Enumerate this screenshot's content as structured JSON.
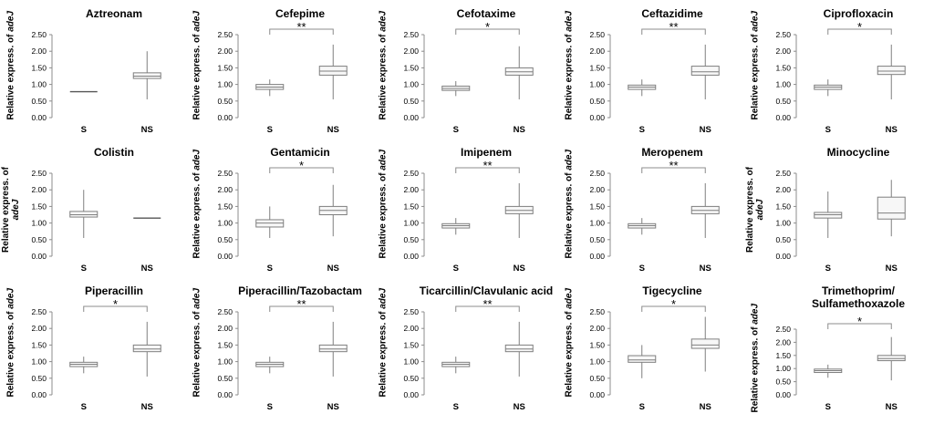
{
  "ylabel_prefix": "Relative express. of ",
  "ylabel_gene": "adeJ",
  "colors": {
    "box_fill": "#f7f7f7",
    "stroke": "#7f7f7f",
    "axis": "#8c8c8c",
    "text": "#000000"
  },
  "chart_data": [
    {
      "type": "box",
      "title": "Aztreonam",
      "categories": [
        "S",
        "NS"
      ],
      "ylim": [
        0,
        2.5
      ],
      "yticks": [
        "0.00",
        "0.50",
        "1.00",
        "1.50",
        "2.00",
        "2.50"
      ],
      "significance": "",
      "boxes": [
        {
          "min": 0.78,
          "q1": 0.78,
          "median": 0.78,
          "q3": 0.78,
          "max": 0.78
        },
        {
          "min": 0.55,
          "q1": 1.18,
          "median": 1.25,
          "q3": 1.35,
          "max": 2.0
        }
      ]
    },
    {
      "type": "box",
      "title": "Cefepime",
      "categories": [
        "S",
        "NS"
      ],
      "ylim": [
        0,
        2.5
      ],
      "yticks": [
        "0.00",
        "0.50",
        "1.00",
        "1.50",
        "2.00",
        "2.50"
      ],
      "significance": "**",
      "boxes": [
        {
          "min": 0.65,
          "q1": 0.85,
          "median": 0.92,
          "q3": 1.0,
          "max": 1.15
        },
        {
          "min": 0.55,
          "q1": 1.28,
          "median": 1.4,
          "q3": 1.55,
          "max": 2.2
        }
      ]
    },
    {
      "type": "box",
      "title": "Cefotaxime",
      "categories": [
        "S",
        "NS"
      ],
      "ylim": [
        0,
        2.5
      ],
      "yticks": [
        "0.00",
        "0.50",
        "1.00",
        "1.50",
        "2.00",
        "2.50"
      ],
      "significance": "*",
      "boxes": [
        {
          "min": 0.65,
          "q1": 0.82,
          "median": 0.88,
          "q3": 0.95,
          "max": 1.1
        },
        {
          "min": 0.55,
          "q1": 1.28,
          "median": 1.38,
          "q3": 1.5,
          "max": 2.15
        }
      ]
    },
    {
      "type": "box",
      "title": "Ceftazidime",
      "categories": [
        "S",
        "NS"
      ],
      "ylim": [
        0,
        2.5
      ],
      "yticks": [
        "0.00",
        "0.50",
        "1.00",
        "1.50",
        "2.00",
        "2.50"
      ],
      "significance": "**",
      "boxes": [
        {
          "min": 0.65,
          "q1": 0.85,
          "median": 0.92,
          "q3": 0.98,
          "max": 1.15
        },
        {
          "min": 0.55,
          "q1": 1.28,
          "median": 1.38,
          "q3": 1.55,
          "max": 2.2
        }
      ]
    },
    {
      "type": "box",
      "title": "Ciprofloxacin",
      "categories": [
        "S",
        "NS"
      ],
      "ylim": [
        0,
        2.5
      ],
      "yticks": [
        "0.00",
        "0.50",
        "1.00",
        "1.50",
        "2.00",
        "2.50"
      ],
      "significance": "*",
      "boxes": [
        {
          "min": 0.65,
          "q1": 0.85,
          "median": 0.92,
          "q3": 0.98,
          "max": 1.15
        },
        {
          "min": 0.55,
          "q1": 1.3,
          "median": 1.4,
          "q3": 1.55,
          "max": 2.2
        }
      ]
    },
    {
      "type": "box",
      "title": "Colistin",
      "categories": [
        "S",
        "NS"
      ],
      "ylim": [
        0,
        2.5
      ],
      "yticks": [
        "0.00",
        "0.50",
        "1.00",
        "1.50",
        "2.00",
        "2.50"
      ],
      "significance": "",
      "boxes": [
        {
          "min": 0.55,
          "q1": 1.18,
          "median": 1.25,
          "q3": 1.35,
          "max": 2.0
        },
        {
          "min": 1.15,
          "q1": 1.15,
          "median": 1.15,
          "q3": 1.15,
          "max": 1.15
        }
      ]
    },
    {
      "type": "box",
      "title": "Gentamicin",
      "categories": [
        "S",
        "NS"
      ],
      "ylim": [
        0,
        2.5
      ],
      "yticks": [
        "0.00",
        "0.50",
        "1.00",
        "1.50",
        "2.00",
        "2.50"
      ],
      "significance": "*",
      "boxes": [
        {
          "min": 0.55,
          "q1": 0.88,
          "median": 1.0,
          "q3": 1.1,
          "max": 1.5
        },
        {
          "min": 0.6,
          "q1": 1.25,
          "median": 1.38,
          "q3": 1.5,
          "max": 2.15
        }
      ]
    },
    {
      "type": "box",
      "title": "Imipenem",
      "categories": [
        "S",
        "NS"
      ],
      "ylim": [
        0,
        2.5
      ],
      "yticks": [
        "0.00",
        "0.50",
        "1.00",
        "1.50",
        "2.00",
        "2.50"
      ],
      "significance": "**",
      "boxes": [
        {
          "min": 0.65,
          "q1": 0.85,
          "median": 0.92,
          "q3": 0.98,
          "max": 1.15
        },
        {
          "min": 0.55,
          "q1": 1.28,
          "median": 1.38,
          "q3": 1.5,
          "max": 2.2
        }
      ]
    },
    {
      "type": "box",
      "title": "Meropenem",
      "categories": [
        "S",
        "NS"
      ],
      "ylim": [
        0,
        2.5
      ],
      "yticks": [
        "0.00",
        "0.50",
        "1.00",
        "1.50",
        "2.00",
        "2.50"
      ],
      "significance": "**",
      "boxes": [
        {
          "min": 0.65,
          "q1": 0.85,
          "median": 0.92,
          "q3": 0.98,
          "max": 1.15
        },
        {
          "min": 0.55,
          "q1": 1.28,
          "median": 1.38,
          "q3": 1.5,
          "max": 2.2
        }
      ]
    },
    {
      "type": "box",
      "title": "Minocycline",
      "categories": [
        "S",
        "NS"
      ],
      "ylim": [
        0,
        2.5
      ],
      "yticks": [
        "0.00",
        "0.50",
        "1.00",
        "1.50",
        "2.00",
        "2.50"
      ],
      "significance": "",
      "boxes": [
        {
          "min": 0.55,
          "q1": 1.15,
          "median": 1.25,
          "q3": 1.32,
          "max": 1.95
        },
        {
          "min": 0.6,
          "q1": 1.12,
          "median": 1.3,
          "q3": 1.78,
          "max": 2.3
        }
      ]
    },
    {
      "type": "box",
      "title": "Piperacillin",
      "categories": [
        "S",
        "NS"
      ],
      "ylim": [
        0,
        2.5
      ],
      "yticks": [
        "0.00",
        "0.50",
        "1.00",
        "1.50",
        "2.00",
        "2.50"
      ],
      "significance": "*",
      "boxes": [
        {
          "min": 0.65,
          "q1": 0.85,
          "median": 0.92,
          "q3": 0.98,
          "max": 1.15
        },
        {
          "min": 0.55,
          "q1": 1.3,
          "median": 1.38,
          "q3": 1.5,
          "max": 2.2
        }
      ]
    },
    {
      "type": "box",
      "title": "Piperacillin/Tazobactam",
      "categories": [
        "S",
        "NS"
      ],
      "ylim": [
        0,
        2.5
      ],
      "yticks": [
        "0.00",
        "0.50",
        "1.00",
        "1.50",
        "2.00",
        "2.50"
      ],
      "significance": "**",
      "boxes": [
        {
          "min": 0.65,
          "q1": 0.85,
          "median": 0.92,
          "q3": 0.98,
          "max": 1.15
        },
        {
          "min": 0.55,
          "q1": 1.3,
          "median": 1.38,
          "q3": 1.5,
          "max": 2.2
        }
      ]
    },
    {
      "type": "box",
      "title": "Ticarcillin/Clavulanic acid",
      "categories": [
        "S",
        "NS"
      ],
      "ylim": [
        0,
        2.5
      ],
      "yticks": [
        "0.00",
        "0.50",
        "1.00",
        "1.50",
        "2.00",
        "2.50"
      ],
      "significance": "**",
      "boxes": [
        {
          "min": 0.65,
          "q1": 0.85,
          "median": 0.92,
          "q3": 0.98,
          "max": 1.15
        },
        {
          "min": 0.55,
          "q1": 1.3,
          "median": 1.38,
          "q3": 1.5,
          "max": 2.2
        }
      ]
    },
    {
      "type": "box",
      "title": "Tigecycline",
      "categories": [
        "S",
        "NS"
      ],
      "ylim": [
        0,
        2.5
      ],
      "yticks": [
        "0.00",
        "0.50",
        "1.00",
        "1.50",
        "2.00",
        "2.50"
      ],
      "significance": "*",
      "boxes": [
        {
          "min": 0.5,
          "q1": 0.98,
          "median": 1.05,
          "q3": 1.18,
          "max": 1.5
        },
        {
          "min": 0.7,
          "q1": 1.4,
          "median": 1.5,
          "q3": 1.68,
          "max": 2.35
        }
      ]
    },
    {
      "type": "box",
      "title": "Trimethoprim/ Sulfamethoxazole",
      "categories": [
        "S",
        "NS"
      ],
      "ylim": [
        0,
        2.5
      ],
      "yticks": [
        "0.00",
        "0.50",
        "1.00",
        "1.50",
        "2.00",
        "2.50"
      ],
      "significance": "*",
      "boxes": [
        {
          "min": 0.65,
          "q1": 0.85,
          "median": 0.92,
          "q3": 0.98,
          "max": 1.15
        },
        {
          "min": 0.55,
          "q1": 1.3,
          "median": 1.38,
          "q3": 1.5,
          "max": 2.2
        }
      ]
    }
  ]
}
